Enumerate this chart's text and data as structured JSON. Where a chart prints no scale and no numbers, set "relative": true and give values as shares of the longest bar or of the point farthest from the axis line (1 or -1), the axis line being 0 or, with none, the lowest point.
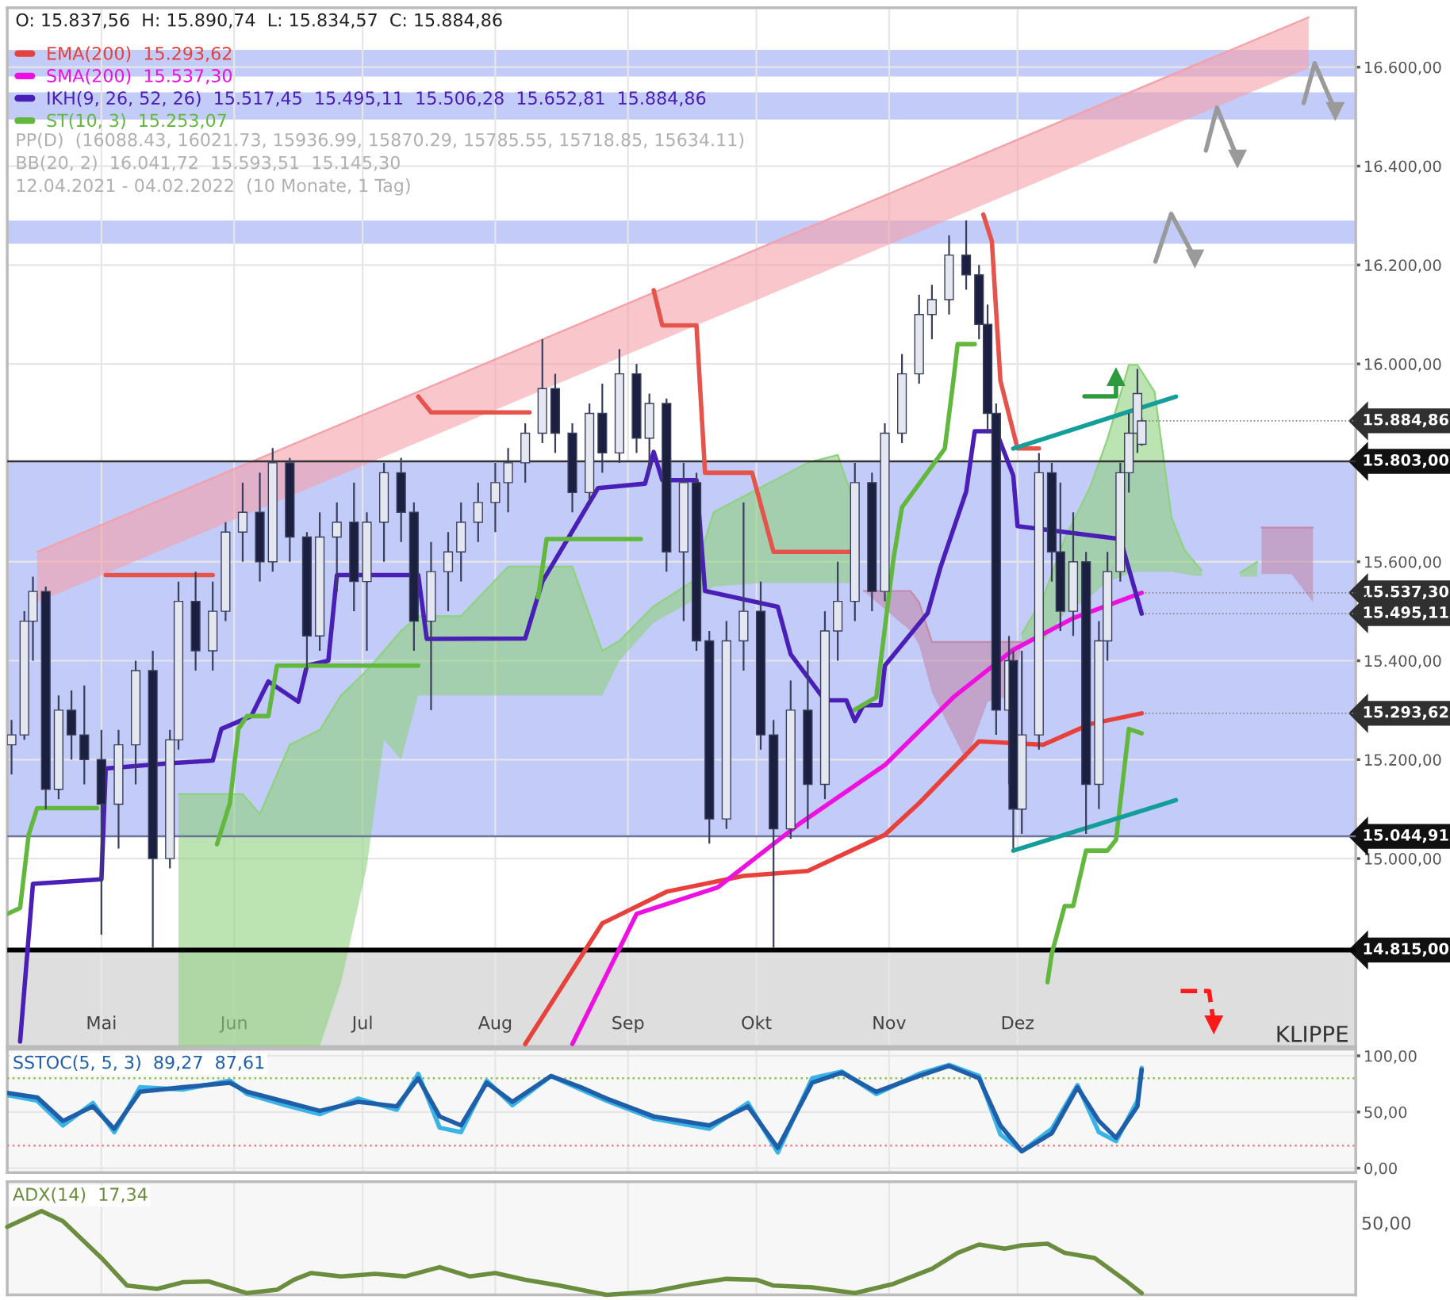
{
  "chart_data": [
    {
      "type": "candlestick",
      "x": [
        "2021-04-10",
        "2021-04-13",
        "2021-04-15",
        "2021-04-18",
        "2021-04-21",
        "2021-04-24",
        "2021-04-27",
        "2021-05-01",
        "2021-05-05",
        "2021-05-09",
        "2021-05-13",
        "2021-05-17",
        "2021-05-19",
        "2021-05-23",
        "2021-05-27",
        "2021-05-30",
        "2021-06-03",
        "2021-06-07",
        "2021-06-10",
        "2021-06-14",
        "2021-06-18",
        "2021-06-21",
        "2021-06-25",
        "2021-06-29",
        "2021-07-02",
        "2021-07-06",
        "2021-07-10",
        "2021-07-13",
        "2021-07-17",
        "2021-07-21",
        "2021-07-24",
        "2021-07-28",
        "2021-08-01",
        "2021-08-04",
        "2021-08-08",
        "2021-08-12",
        "2021-08-15",
        "2021-08-19",
        "2021-08-23",
        "2021-08-26",
        "2021-08-30",
        "2021-09-03",
        "2021-09-06",
        "2021-09-10",
        "2021-09-14",
        "2021-09-17",
        "2021-09-20",
        "2021-09-24",
        "2021-09-28",
        "2021-10-02",
        "2021-10-05",
        "2021-10-09",
        "2021-10-13",
        "2021-10-17",
        "2021-10-20",
        "2021-10-24",
        "2021-10-28",
        "2021-10-31",
        "2021-11-04",
        "2021-11-08",
        "2021-11-11",
        "2021-11-15",
        "2021-11-19",
        "2021-11-22",
        "2021-11-24",
        "2021-11-26",
        "2021-11-29",
        "2021-11-30",
        "2021-12-02",
        "2021-12-06",
        "2021-12-09",
        "2021-12-11",
        "2021-12-14",
        "2021-12-17",
        "2021-12-20",
        "2021-12-22",
        "2021-12-25",
        "2021-12-27",
        "2021-12-29",
        "2021-12-30"
      ],
      "ohlc": [
        [
          15230,
          15280,
          15170,
          15250
        ],
        [
          15250,
          15500,
          15240,
          15480
        ],
        [
          15480,
          15570,
          15400,
          15540
        ],
        [
          15540,
          15550,
          15100,
          15140
        ],
        [
          15140,
          15330,
          15120,
          15300
        ],
        [
          15300,
          15340,
          15200,
          15250
        ],
        [
          15250,
          15350,
          15150,
          15200
        ],
        [
          15200,
          15260,
          14846,
          15110
        ],
        [
          15110,
          15260,
          15020,
          15230
        ],
        [
          15230,
          15400,
          15150,
          15380
        ],
        [
          15380,
          15420,
          14820,
          15000
        ],
        [
          15000,
          15260,
          14980,
          15240
        ],
        [
          15240,
          15560,
          15220,
          15520
        ],
        [
          15520,
          15580,
          15380,
          15420
        ],
        [
          15420,
          15560,
          15380,
          15500
        ],
        [
          15500,
          15680,
          15480,
          15660
        ],
        [
          15660,
          15760,
          15600,
          15700
        ],
        [
          15700,
          15780,
          15560,
          15600
        ],
        [
          15600,
          15830,
          15580,
          15800
        ],
        [
          15800,
          15810,
          15600,
          15650
        ],
        [
          15650,
          15660,
          15380,
          15450
        ],
        [
          15450,
          15700,
          15420,
          15650
        ],
        [
          15650,
          15720,
          15540,
          15680
        ],
        [
          15680,
          15760,
          15500,
          15560
        ],
        [
          15560,
          15700,
          15420,
          15680
        ],
        [
          15680,
          15800,
          15600,
          15780
        ],
        [
          15780,
          15810,
          15640,
          15700
        ],
        [
          15700,
          15720,
          15420,
          15480
        ],
        [
          15480,
          15640,
          15300,
          15580
        ],
        [
          15580,
          15660,
          15500,
          15620
        ],
        [
          15620,
          15720,
          15560,
          15680
        ],
        [
          15680,
          15760,
          15640,
          15720
        ],
        [
          15720,
          15800,
          15660,
          15760
        ],
        [
          15760,
          15830,
          15700,
          15800
        ],
        [
          15800,
          15880,
          15760,
          15860
        ],
        [
          15860,
          16050,
          15840,
          15950
        ],
        [
          15950,
          15980,
          15820,
          15860
        ],
        [
          15860,
          15880,
          15700,
          15740
        ],
        [
          15740,
          15920,
          15720,
          15900
        ],
        [
          15900,
          15960,
          15780,
          15820
        ],
        [
          15820,
          16030,
          15800,
          15980
        ],
        [
          15980,
          16000,
          15820,
          15850
        ],
        [
          15850,
          15940,
          15780,
          15920
        ],
        [
          15920,
          15930,
          15580,
          15620
        ],
        [
          15620,
          15800,
          15480,
          15760
        ],
        [
          15760,
          15780,
          15420,
          15440
        ],
        [
          15440,
          15460,
          15030,
          15080
        ],
        [
          15080,
          15480,
          15060,
          15440
        ],
        [
          15440,
          15720,
          15380,
          15500
        ],
        [
          15500,
          15560,
          15220,
          15250
        ],
        [
          15250,
          15280,
          14820,
          15060
        ],
        [
          15060,
          15360,
          15040,
          15300
        ],
        [
          15300,
          15400,
          15060,
          15150
        ],
        [
          15150,
          15500,
          15120,
          15460
        ],
        [
          15460,
          15600,
          15400,
          15520
        ],
        [
          15520,
          15800,
          15480,
          15760
        ],
        [
          15760,
          15780,
          15500,
          15540
        ],
        [
          15540,
          15880,
          15520,
          15860
        ],
        [
          15860,
          16020,
          15840,
          15980
        ],
        [
          15980,
          16140,
          15960,
          16100
        ],
        [
          16100,
          16160,
          16050,
          16130
        ],
        [
          16130,
          16260,
          16100,
          16220
        ],
        [
          16220,
          16290,
          16150,
          16180
        ],
        [
          16180,
          16200,
          16050,
          16080
        ],
        [
          16080,
          16120,
          15860,
          15900
        ],
        [
          15900,
          15920,
          15250,
          15300
        ],
        [
          15300,
          15450,
          15150,
          15400
        ],
        [
          15400,
          15420,
          15020,
          15100
        ],
        [
          15100,
          15420,
          15050,
          15250
        ],
        [
          15250,
          15820,
          15220,
          15780
        ],
        [
          15780,
          15800,
          15560,
          15620
        ],
        [
          15620,
          15760,
          15460,
          15500
        ],
        [
          15500,
          15700,
          15450,
          15600
        ],
        [
          15600,
          15620,
          15050,
          15150
        ],
        [
          15150,
          15480,
          15100,
          15440
        ],
        [
          15440,
          15620,
          15400,
          15580
        ],
        [
          15580,
          15800,
          15560,
          15780
        ],
        [
          15780,
          15900,
          15740,
          15860
        ],
        [
          15860,
          15990,
          15820,
          15940
        ],
        [
          15837.56,
          15890.74,
          15834.57,
          15884.86
        ]
      ],
      "series": [
        {
          "type": "line",
          "color": "#f4a0a8",
          "x": [
            "2021-04-16",
            "2022-02-07"
          ],
          "values": [
            15620,
            16701
          ],
          "upper": [
            15620,
            16701
          ],
          "lower": [
            15518,
            16598
          ]
        },
        {
          "type": "line",
          "color": "#8fd27e",
          "x": [
            "2021-05-19",
            "2021-06-03",
            "2021-06-07",
            "2021-06-14",
            "2021-06-21",
            "2021-06-26",
            "2021-07-02",
            "2021-07-06",
            "2021-07-10",
            "2021-07-14",
            "2021-07-24",
            "2021-08-04",
            "2021-08-19",
            "2021-08-26",
            "2021-08-30",
            "2021-09-07",
            "2021-09-16",
            "2021-09-21",
            "2021-10-02",
            "2021-10-13",
            "2021-10-20",
            "2021-10-23",
            "2021-11-01",
            "2021-12-02",
            "2021-12-07",
            "2021-12-12",
            "2021-12-18",
            "2021-12-22",
            "2021-12-27",
            "2021-12-29",
            "2022-01-02",
            "2022-01-04",
            "2022-01-06",
            "2022-01-09",
            "2022-01-13",
            "2022-01-17",
            "2022-01-22",
            "2022-01-26"
          ],
          "values": [
            15130,
            15130,
            15090,
            15230,
            15260,
            15330,
            15380,
            15420,
            15460,
            15490,
            15490,
            15590,
            15590,
            15420,
            15440,
            15510,
            15560,
            15700,
            15750,
            15800,
            15816,
            15740,
            null,
            15454,
            15528,
            15646,
            15752,
            15848,
            15998,
            15998,
            15944,
            15816,
            15688,
            15624,
            15582,
            null,
            15578,
            15600
          ],
          "upper": [
            15130,
            15130,
            15090,
            15230,
            15260,
            15330,
            15380,
            15420,
            15460,
            15490,
            15490,
            15590,
            15590,
            15420,
            15440,
            15510,
            15560,
            15700,
            15750,
            15800,
            15816,
            15740,
            null,
            15454,
            15528,
            15646,
            15752,
            15848,
            15998,
            15998,
            15944,
            15816,
            15688,
            15624,
            15582,
            null,
            15578,
            15600
          ],
          "lower": [
            14620,
            14620,
            14620,
            14620,
            14620,
            14750,
            14984,
            15240,
            15200,
            15330,
            15330,
            15330,
            15330,
            15330,
            15400,
            15477,
            15520,
            15550,
            15557,
            15557,
            15557,
            15557,
            null,
            15438,
            15438,
            15496,
            15530,
            15560,
            15575,
            15580,
            15580,
            15580,
            15580,
            15575,
            15570,
            null,
            15570,
            15570
          ]
        },
        {
          "type": "line",
          "color": "#c28aab",
          "upper": [
            15541,
            15541,
            15518,
            15438,
            15438,
            15438,
            15438,
            15438,
            null,
            15669,
            15669,
            15669
          ],
          "x": [
            "2021-10-26",
            "2021-11-06",
            "2021-11-08",
            "2021-11-11",
            "2021-11-19",
            "2021-11-24",
            "2021-11-30",
            "2021-12-02",
            "2021-12-05",
            "2022-01-27",
            "2022-02-03",
            "2022-02-08"
          ],
          "values": [
            15541,
            15541,
            15518,
            15438,
            15438,
            15438,
            15438,
            15438,
            null,
            15669,
            15669,
            15669
          ],
          "lower": [
            15541,
            15460,
            15432,
            15336,
            15198,
            15317,
            15330,
            15438,
            null,
            15575,
            15575,
            15518
          ]
        },
        {
          "name": "EMA(200)  15.293,62",
          "type": "line",
          "color": "#e8403a",
          "x": [
            "2021-08-08",
            "2021-08-26",
            "2021-09-10",
            "2021-09-28",
            "2021-10-13",
            "2021-10-31",
            "2021-11-08",
            "2021-11-22",
            "2021-12-07",
            "2021-12-18",
            "2021-12-30"
          ],
          "values": [
            14625,
            14869,
            14933,
            14965,
            14975,
            15048,
            15112,
            15237,
            15230,
            15272,
            15293.62
          ]
        },
        {
          "name": "SMA(200)  15.537,30",
          "type": "line",
          "color": "#ee10e0",
          "x": [
            "2021-08-19",
            "2021-09-03",
            "2021-09-22",
            "2021-10-11",
            "2021-10-31",
            "2021-11-16",
            "2021-11-30",
            "2021-12-14",
            "2021-12-30"
          ],
          "values": [
            14625,
            14888,
            14942,
            15070,
            15189,
            15326,
            15422,
            15486,
            15537.3
          ]
        },
        {
          "type": "line",
          "color": "#e5534b",
          "x": [
            "2021-05-02",
            "2021-05-27",
            "2021-06-20",
            "2021-07-14",
            "2021-07-17",
            "2021-08-09",
            "2021-08-25",
            "2021-09-07",
            "2021-09-09",
            "2021-09-17",
            "2021-09-19",
            "2021-09-30",
            "2021-10-05",
            "2021-10-24",
            "2021-11-10",
            "2021-11-23",
            "2021-11-25",
            "2021-11-27",
            "2021-12-01",
            "2021-12-06"
          ],
          "values": [
            15573,
            15573,
            null,
            15934,
            15902,
            15902,
            null,
            16149,
            16078,
            16078,
            15780,
            15780,
            15620,
            15620,
            null,
            16302,
            16248,
            15966,
            15829,
            15829
          ]
        },
        {
          "name": "IKH(9, 26, 52, 26)  15.517,45  15.495,11  15.506,28  15.652,81  15.884,86",
          "type": "line",
          "color": "#4a1fb8",
          "x": [
            "2021-04-12",
            "2021-04-15",
            "2021-05-01",
            "2021-05-02",
            "2021-05-16",
            "2021-05-27",
            "2021-05-29",
            "2021-06-05",
            "2021-06-09",
            "2021-06-16",
            "2021-06-18",
            "2021-06-23",
            "2021-06-25",
            "2021-07-14",
            "2021-07-16",
            "2021-08-08",
            "2021-08-12",
            "2021-08-25",
            "2021-09-05",
            "2021-09-07",
            "2021-09-09",
            "2021-09-17",
            "2021-09-19",
            "2021-10-06",
            "2021-10-09",
            "2021-10-17",
            "2021-10-22",
            "2021-10-24",
            "2021-10-26",
            "2021-10-30",
            "2021-10-31",
            "2021-11-10",
            "2021-11-13",
            "2021-11-19",
            "2021-11-21",
            "2021-11-26",
            "2021-11-30",
            "2021-12-01",
            "2021-12-25",
            "2021-12-30"
          ],
          "values": [
            14630,
            14949,
            14958,
            15182,
            15192,
            15198,
            15262,
            15288,
            15358,
            15317,
            15390,
            15400,
            15573,
            15573,
            15444,
            15445,
            15560,
            15749,
            15758,
            15822,
            15765,
            15765,
            15541,
            15509,
            15413,
            15320,
            15320,
            15278,
            15310,
            15310,
            15390,
            15496,
            15589,
            15742,
            15864,
            15864,
            15774,
            15672,
            15646,
            15495.11
          ]
        },
        {
          "name": "ST(10, 3)  15.253,07",
          "type": "line",
          "color": "#62b83c",
          "x": [
            "2021-04-09",
            "2021-04-12",
            "2021-04-14",
            "2021-04-16",
            "2021-04-30",
            "2021-05-14",
            "2021-05-28",
            "2021-05-31",
            "2021-06-02",
            "2021-06-04",
            "2021-06-09",
            "2021-06-11",
            "2021-07-14",
            "2021-07-30",
            "2021-08-11",
            "2021-08-13",
            "2021-09-04",
            "2021-10-01",
            "2021-10-24",
            "2021-10-29",
            "2021-11-02",
            "2021-11-04",
            "2021-11-14",
            "2021-11-16",
            "2021-11-17",
            "2021-11-21",
            "2021-12-03",
            "2021-12-08",
            "2021-12-09",
            "2021-12-12",
            "2021-12-14",
            "2021-12-17",
            "2021-12-22",
            "2021-12-24",
            "2021-12-27",
            "2021-12-30"
          ],
          "values": [
            14888,
            14900,
            15048,
            15102,
            15102,
            null,
            15029,
            15112,
            15262,
            15288,
            15288,
            15390,
            15390,
            null,
            15528,
            15646,
            15646,
            null,
            15301,
            15326,
            15605,
            15710,
            15829,
            15966,
            16040,
            16040,
            null,
            14750,
            14808,
            14904,
            14904,
            15016,
            15016,
            15038,
            15262,
            15253.07
          ]
        },
        {
          "type": "line",
          "color": "#139e9a",
          "x": [
            "2021-11-30",
            "2022-01-07"
          ],
          "values": [
            15829,
            15934
          ]
        },
        {
          "type": "line",
          "color": "#139e9a",
          "x": [
            "2021-11-30",
            "2022-01-07"
          ],
          "values": [
            15016,
            15118
          ]
        }
      ],
      "xlim": [
        "2021-04-09",
        "2022-02-18"
      ],
      "xticks": [
        {
          "value": "2021-05-01",
          "label": "Mai"
        },
        {
          "value": "2021-06-01",
          "label": "Jun"
        },
        {
          "value": "2021-07-01",
          "label": "Jul"
        },
        {
          "value": "2021-08-01",
          "label": "Aug"
        },
        {
          "value": "2021-09-01",
          "label": "Sep"
        },
        {
          "value": "2021-10-01",
          "label": "Okt"
        },
        {
          "value": "2021-11-01",
          "label": "Nov"
        },
        {
          "value": "2021-12-01",
          "label": "Dez"
        }
      ],
      "ylim": [
        14620,
        16720
      ],
      "yticks": [
        {
          "value": 15000,
          "label": "15.000,00"
        },
        {
          "value": 15200,
          "label": "15.200,00"
        },
        {
          "value": 15400,
          "label": "15.400,00"
        },
        {
          "value": 15600,
          "label": "15.600,00"
        },
        {
          "value": 16000,
          "label": "16.000,00"
        },
        {
          "value": 16200,
          "label": "16.200,00"
        },
        {
          "value": 16400,
          "label": "16.400,00"
        },
        {
          "value": 16600,
          "label": "16.600,00"
        }
      ],
      "grid": true,
      "legend": "top left",
      "bands": [
        {
          "axis": "y",
          "from": 15044.91,
          "to": 15803,
          "color": "#c3cbf8"
        },
        {
          "axis": "y",
          "from": 14620,
          "to": 14815,
          "label": "KLIPPE",
          "color": "#dedede"
        },
        {
          "axis": "y",
          "from": 16243,
          "to": 16290,
          "color": "#c3cbf8"
        },
        {
          "axis": "y",
          "from": 16494,
          "to": 16549,
          "color": "#c3cbf8"
        },
        {
          "axis": "y",
          "from": 16581,
          "to": 16635,
          "color": "#c3cbf8"
        }
      ],
      "ref_lines": [
        {
          "axis": "y",
          "value": 15803,
          "label": "15.803,00",
          "color": "#333333"
        },
        {
          "axis": "y",
          "value": 15044.91,
          "label": "15.044,91",
          "color": "#6b7399"
        },
        {
          "axis": "y",
          "value": 14815,
          "label": "14.815,00",
          "color": "#000000"
        }
      ],
      "annotations": [
        "O: 15.837,56  H: 15.890,74  L: 15.834,57  C: 15.884,86",
        "PP(D)  (16088.43, 16021.73, 15936.99, 15870.29, 15785.55, 15718.85, 15634.11)",
        "BB(20, 2)  16.041,72  15.593,51  15.145,30",
        "12.04.2021 - 04.02.2022  (10 Monate, 1 Tag)",
        {
          "text": "15.884,86",
          "x": "2021-12-30",
          "y": 15884.86
        },
        {
          "text": "15.537,30",
          "x": "2021-12-30",
          "y": 15537.3
        },
        {
          "text": "15.495,11",
          "x": "2021-12-30",
          "y": 15495.11
        },
        {
          "text": "15.293,62",
          "x": "2021-12-30",
          "y": 15293.62
        }
      ]
    },
    {
      "type": "line",
      "title": "SSTOC(5, 5, 3)  89,27  87,61",
      "series": [
        {
          "type": "line",
          "color": "#3ab4e6",
          "x": [
            "2021-04-09",
            "2021-04-16",
            "2021-04-22",
            "2021-04-29",
            "2021-05-04",
            "2021-05-10",
            "2021-05-20",
            "2021-05-31",
            "2021-06-04",
            "2021-06-13",
            "2021-06-21",
            "2021-06-30",
            "2021-07-09",
            "2021-07-14",
            "2021-07-19",
            "2021-07-24",
            "2021-07-30",
            "2021-08-05",
            "2021-08-14",
            "2021-08-21",
            "2021-08-27",
            "2021-09-07",
            "2021-09-20",
            "2021-09-29",
            "2021-10-06",
            "2021-10-14",
            "2021-10-21",
            "2021-10-29",
            "2021-11-08",
            "2021-11-15",
            "2021-11-22",
            "2021-11-27",
            "2021-12-02",
            "2021-12-09",
            "2021-12-15",
            "2021-12-20",
            "2021-12-24",
            "2021-12-29",
            "2021-12-30"
          ],
          "values": [
            65,
            60,
            38,
            58,
            32,
            72,
            70,
            78,
            66,
            56,
            48,
            62,
            52,
            84,
            36,
            32,
            78,
            56,
            82,
            70,
            60,
            44,
            35,
            58,
            14,
            80,
            86,
            66,
            84,
            92,
            82,
            30,
            15,
            35,
            74,
            32,
            24,
            60,
            89.27
          ]
        },
        {
          "type": "line",
          "color": "#1f5faa",
          "x": [
            "2021-04-09",
            "2021-04-16",
            "2021-04-22",
            "2021-04-29",
            "2021-05-04",
            "2021-05-10",
            "2021-05-20",
            "2021-05-31",
            "2021-06-04",
            "2021-06-13",
            "2021-06-21",
            "2021-06-30",
            "2021-07-09",
            "2021-07-14",
            "2021-07-19",
            "2021-07-24",
            "2021-07-30",
            "2021-08-05",
            "2021-08-14",
            "2021-08-21",
            "2021-08-27",
            "2021-09-07",
            "2021-09-20",
            "2021-09-29",
            "2021-10-06",
            "2021-10-14",
            "2021-10-21",
            "2021-10-29",
            "2021-11-08",
            "2021-11-15",
            "2021-11-22",
            "2021-11-27",
            "2021-12-02",
            "2021-12-09",
            "2021-12-15",
            "2021-12-20",
            "2021-12-24",
            "2021-12-29",
            "2021-12-30"
          ],
          "values": [
            67,
            63,
            42,
            55,
            35,
            68,
            72,
            76,
            68,
            59,
            51,
            59,
            55,
            80,
            46,
            38,
            76,
            59,
            82,
            72,
            62,
            46,
            38,
            55,
            18,
            76,
            85,
            68,
            82,
            91,
            80,
            38,
            15,
            31,
            72,
            42,
            27,
            55,
            87.61
          ]
        }
      ],
      "xlim": [
        "2021-04-09",
        "2022-02-18"
      ],
      "xticks": [
        {
          "value": "2021-05-01",
          "label": null
        },
        {
          "value": "2021-06-01",
          "label": null
        },
        {
          "value": "2021-07-01",
          "label": null
        },
        {
          "value": "2021-08-01",
          "label": null
        },
        {
          "value": "2021-09-01",
          "label": null
        },
        {
          "value": "2021-10-01",
          "label": null
        },
        {
          "value": "2021-11-01",
          "label": null
        },
        {
          "value": "2021-12-01",
          "label": null
        }
      ],
      "ylim": [
        -4,
        106
      ],
      "yticks": [
        {
          "value": 0,
          "label": "0,00"
        },
        {
          "value": 50,
          "label": "50,00"
        },
        {
          "value": 100,
          "label": "100,00"
        }
      ],
      "tick_labels": "y",
      "grid": true,
      "ref_lines": [
        {
          "axis": "y",
          "value": 80,
          "color": "#8bc34a",
          "line_style": "dotted"
        },
        {
          "axis": "y",
          "value": 20,
          "color": "#f08080",
          "line_style": "dotted"
        }
      ]
    },
    {
      "type": "line",
      "title": "ADX(14)  17,34",
      "relative": true,
      "series": [
        {
          "type": "line",
          "color": "#6b8e3e",
          "x": [
            "2021-04-09",
            "2021-04-17",
            "2021-04-22",
            "2021-05-01",
            "2021-05-07",
            "2021-05-14",
            "2021-05-20",
            "2021-05-26",
            "2021-06-04",
            "2021-06-11",
            "2021-06-15",
            "2021-06-19",
            "2021-06-26",
            "2021-07-04",
            "2021-07-11",
            "2021-07-19",
            "2021-07-26",
            "2021-08-01",
            "2021-08-08",
            "2021-08-16",
            "2021-08-27",
            "2021-09-07",
            "2021-09-16",
            "2021-09-24",
            "2021-10-01",
            "2021-10-05",
            "2021-10-14",
            "2021-10-24",
            "2021-11-02",
            "2021-11-11",
            "2021-11-17",
            "2021-11-22",
            "2021-11-28",
            "2021-12-02",
            "2021-12-08",
            "2021-12-12",
            "2021-12-19",
            "2021-12-26",
            "2021-12-30"
          ],
          "values": [
            0.81,
            1,
            0.88,
            0.44,
            0.11,
            0.07,
            0.15,
            0.16,
            0.02,
            0.06,
            0.18,
            0.26,
            0.22,
            0.25,
            0.22,
            0.33,
            0.22,
            0.26,
            0.18,
            0.11,
            0,
            0.04,
            0.13,
            0.19,
            0.18,
            0.11,
            0.09,
            0.02,
            0.13,
            0.31,
            0.5,
            0.6,
            0.55,
            0.59,
            0.61,
            0.5,
            0.44,
            0.18,
            0.02
          ]
        }
      ],
      "xlim": [
        "2021-04-09",
        "2022-02-18"
      ],
      "xticks": [
        {
          "value": "2021-05-01",
          "label": null
        },
        {
          "value": "2021-06-01",
          "label": null
        },
        {
          "value": "2021-07-01",
          "label": null
        },
        {
          "value": "2021-08-01",
          "label": null
        },
        {
          "value": "2021-09-01",
          "label": null
        },
        {
          "value": "2021-10-01",
          "label": null
        },
        {
          "value": "2021-11-01",
          "label": null
        },
        {
          "value": "2021-12-01",
          "label": null
        }
      ],
      "tick_labels": false,
      "grid": "x",
      "annotations": [
        "50,00"
      ]
    }
  ]
}
